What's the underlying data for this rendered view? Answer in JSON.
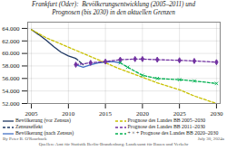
{
  "chart_data": {
    "type": "line",
    "title": "Frankfurt (Oder):  Bevölkerungsentwicklung (2005–2011) und\nPrognosen (bis 2030) in den aktuellen Grenzen",
    "xlim": [
      2004.5,
      2030.5
    ],
    "xticks": [
      2005,
      2010,
      2015,
      2020,
      2025,
      2030
    ],
    "ylim": [
      52000,
      65000
    ],
    "yticks": [
      {
        "value": 52000,
        "label": "52.000"
      },
      {
        "value": 54000,
        "label": "54.000"
      },
      {
        "value": 56000,
        "label": "56.000"
      },
      {
        "value": 58000,
        "label": "58.000"
      },
      {
        "value": 60000,
        "label": "60.000"
      },
      {
        "value": 62000,
        "label": "62.000"
      },
      {
        "value": 64000,
        "label": "64.000"
      }
    ],
    "grid": true,
    "series": [
      {
        "name": "Bevölkerung (vor Zensus)",
        "color": "#1f3864",
        "line_style": "solid",
        "x": [
          2005,
          2006,
          2007,
          2008,
          2009,
          2010,
          2011
        ],
        "values": [
          63800,
          63000,
          62100,
          61100,
          60200,
          59600,
          59200
        ]
      },
      {
        "name": "Zensuseffekt",
        "color": "#1f3864",
        "line_style": "dashed",
        "x": [
          2011,
          2012
        ],
        "values": [
          59200,
          58200
        ]
      },
      {
        "name": "Bevölkerung (nach Zensus)",
        "color": "#4472c4",
        "line_style": "solid",
        "x": [
          2011,
          2012,
          2013,
          2014,
          2015,
          2016,
          2017
        ],
        "values": [
          58200,
          57800,
          58200,
          58500,
          58600,
          58700,
          58500
        ]
      },
      {
        "name": "Prognose des Landes BB 2005–2030",
        "color": "#c8c000",
        "line_style": "dashed",
        "x": [
          2005,
          2007,
          2010,
          2012,
          2015,
          2017,
          2020,
          2022,
          2025,
          2027,
          2030
        ],
        "values": [
          63800,
          62500,
          61000,
          60000,
          58500,
          57500,
          56200,
          55300,
          54200,
          53200,
          52000
        ]
      },
      {
        "name": "Prognose des Landes BB 2011–2030",
        "color": "#7030a0",
        "line_style": "dashed",
        "marker": "diamond",
        "x": [
          2011,
          2013,
          2015,
          2017,
          2019,
          2020,
          2022,
          2025,
          2027,
          2030
        ],
        "values": [
          58200,
          58500,
          58700,
          59000,
          59100,
          59100,
          59000,
          58900,
          58800,
          58600
        ]
      },
      {
        "name": "+ × + Prognose des Landes BB 2020–2030",
        "color": "#00b050",
        "line_style": "dashed",
        "marker": "x",
        "x": [
          2017,
          2018,
          2020,
          2022,
          2025,
          2027,
          2030
        ],
        "values": [
          58500,
          57800,
          56500,
          56000,
          55800,
          55600,
          55200
        ]
      }
    ],
    "annotations": [
      "By Peter B. O'Rourback",
      "Quellen: Amt für Statistik Berlin-Brandenburg; Landesamt für Bauen und Verkehr",
      "July 30, 2024a"
    ]
  }
}
